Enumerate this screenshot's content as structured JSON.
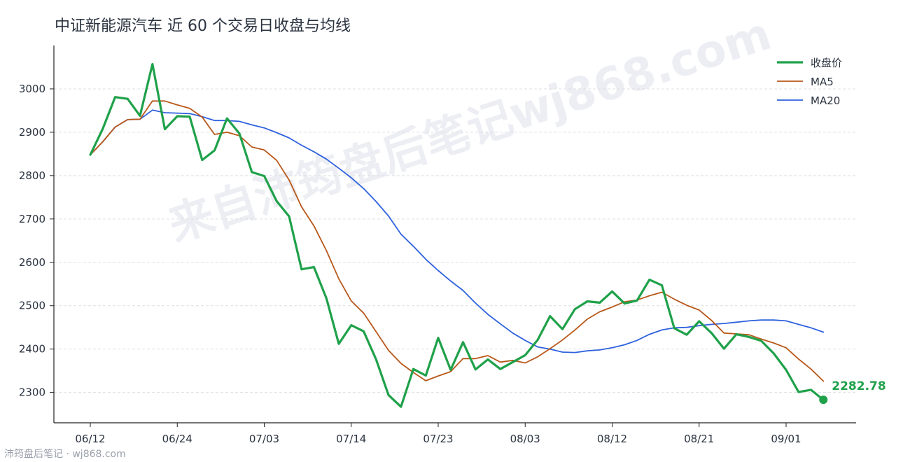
{
  "page": {
    "watermark": "来自沛筠盘后笔记wj868.com",
    "footer": "沛筠盘后笔记 · wj868.com"
  },
  "chart_data": {
    "type": "line",
    "title": "中证新能源汽车 近 60 个交易日收盘与均线",
    "xlabel": "",
    "ylabel": "",
    "ylim": [
      2230,
      3100
    ],
    "yticks": [
      2300,
      2400,
      2500,
      2600,
      2700,
      2800,
      2900,
      3000
    ],
    "x_tick_labels": [
      "06/12",
      "06/24",
      "07/03",
      "07/14",
      "07/23",
      "08/03",
      "08/12",
      "08/21",
      "09/01"
    ],
    "x_tick_index": [
      0,
      7,
      14,
      21,
      28,
      35,
      42,
      49,
      56
    ],
    "grid": "horizontal",
    "legend_position": "top-right",
    "colors": {
      "close": "#1fa14a",
      "ma5": "#b8581a",
      "ma20": "#2f62dd"
    },
    "series": [
      {
        "name": "收盘价",
        "key": "close",
        "values": [
          2848,
          2908,
          2981,
          2977,
          2938,
          3057,
          2907,
          2937,
          2936,
          2836,
          2858,
          2932,
          2897,
          2808,
          2799,
          2741,
          2706,
          2584,
          2589,
          2517,
          2412,
          2455,
          2441,
          2376,
          2294,
          2267,
          2354,
          2339,
          2426,
          2352,
          2416,
          2353,
          2376,
          2354,
          2370,
          2386,
          2421,
          2476,
          2446,
          2492,
          2510,
          2507,
          2533,
          2505,
          2512,
          2560,
          2547,
          2448,
          2433,
          2464,
          2437,
          2401,
          2434,
          2428,
          2419,
          2390,
          2352,
          2301,
          2306,
          2283
        ]
      },
      {
        "name": "MA5",
        "key": "ma5",
        "values": [
          2848,
          2878,
          2912,
          2929,
          2930,
          2972,
          2972,
          2963,
          2955,
          2935,
          2895,
          2900,
          2892,
          2866,
          2859,
          2835,
          2790,
          2728,
          2684,
          2627,
          2562,
          2511,
          2483,
          2440,
          2397,
          2367,
          2346,
          2327,
          2338,
          2348,
          2378,
          2378,
          2385,
          2370,
          2374,
          2368,
          2382,
          2401,
          2421,
          2444,
          2469,
          2486,
          2497,
          2509,
          2513,
          2523,
          2531,
          2515,
          2501,
          2490,
          2466,
          2437,
          2435,
          2433,
          2423,
          2414,
          2403,
          2377,
          2354,
          2326
        ]
      },
      {
        "name": "MA20",
        "key": "ma20",
        "values": [
          2848,
          2878,
          2912,
          2929,
          2930,
          2951,
          2945,
          2944,
          2943,
          2936,
          2927,
          2927,
          2925,
          2917,
          2910,
          2899,
          2887,
          2870,
          2855,
          2838,
          2817,
          2795,
          2770,
          2740,
          2707,
          2665,
          2637,
          2607,
          2581,
          2557,
          2535,
          2506,
          2480,
          2458,
          2437,
          2420,
          2405,
          2400,
          2393,
          2392,
          2396,
          2398,
          2403,
          2410,
          2420,
          2434,
          2444,
          2449,
          2450,
          2454,
          2457,
          2459,
          2462,
          2465,
          2467,
          2467,
          2465,
          2457,
          2449,
          2439
        ]
      }
    ],
    "last_value_label": "2282.78"
  }
}
